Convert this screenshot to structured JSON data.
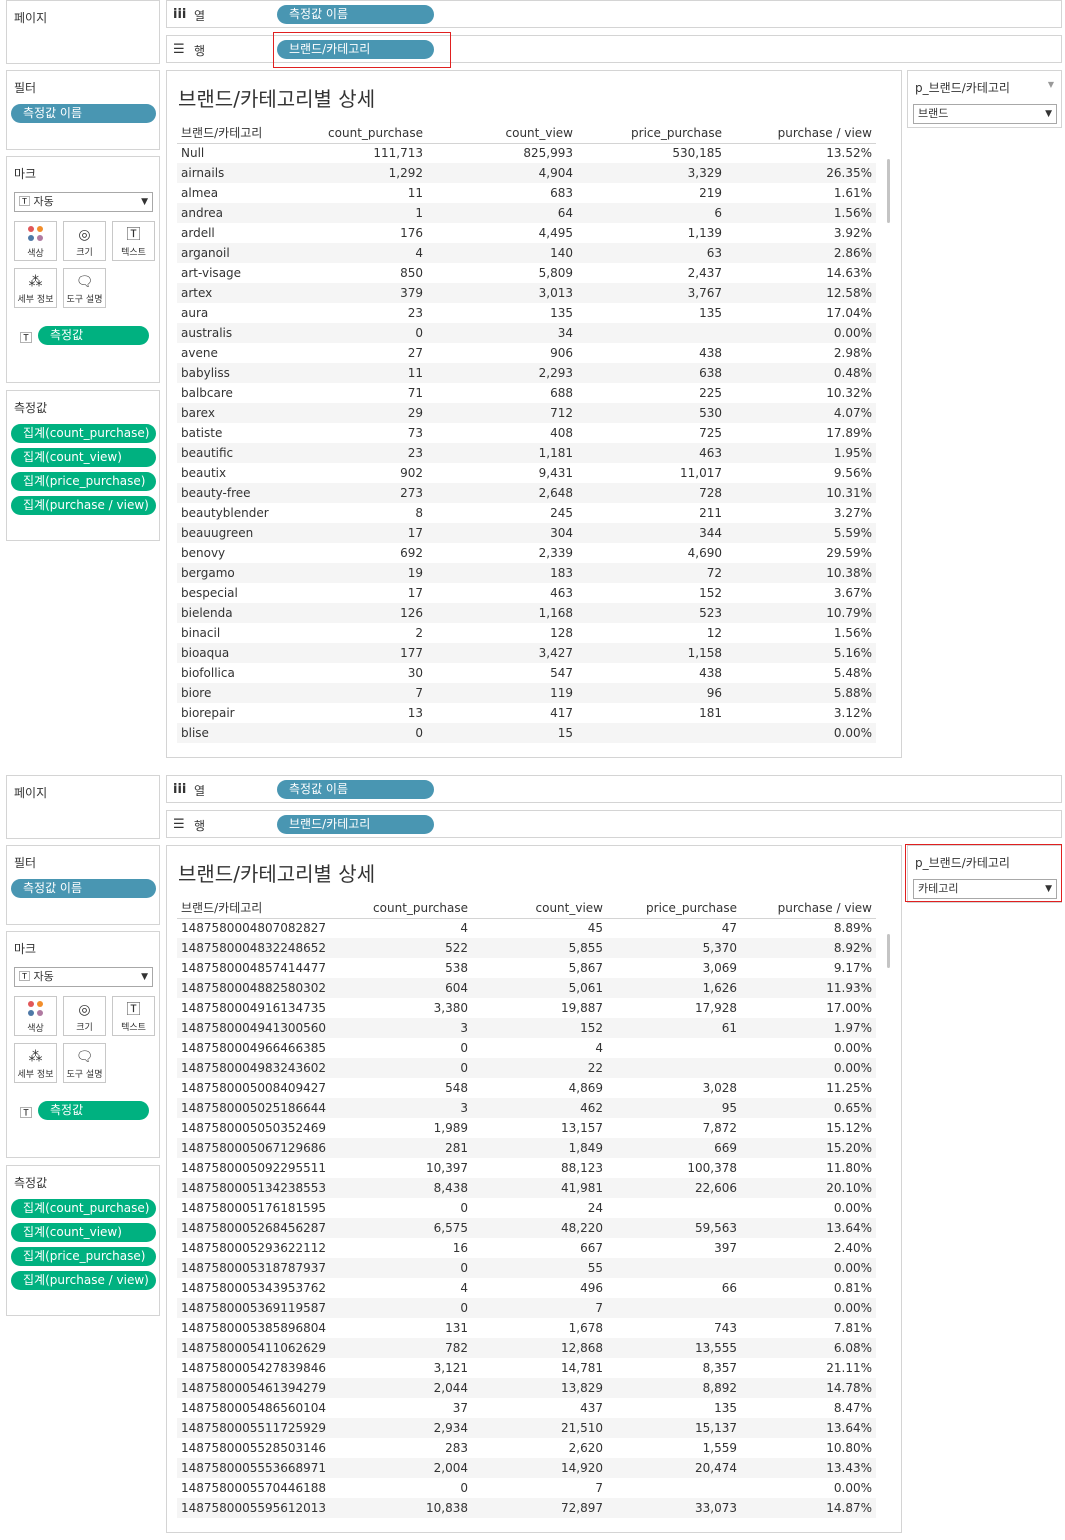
{
  "top": {
    "pages_label": "페이지",
    "columns_shelf": {
      "label": "열",
      "pill": "측정값 이름"
    },
    "rows_shelf": {
      "label": "행",
      "pill": "브랜드/카테고리"
    },
    "filters": {
      "title": "필터",
      "pill": "측정값 이름"
    },
    "marks": {
      "title": "마크",
      "type": "자동",
      "buttons": {
        "color": "색상",
        "size": "크기",
        "text": "텍스트",
        "detail": "세부 정보",
        "tooltip": "도구 설명"
      },
      "text_pill": "측정값"
    },
    "measure_values": {
      "title": "측정값",
      "pills": [
        "집계(count_purchase)",
        "집계(count_view)",
        "집계(price_purchase)",
        "집계(purchase / view)"
      ]
    },
    "parameter": {
      "title": "p_브랜드/카테고리",
      "value": "브랜드"
    },
    "sheet_title": "브랜드/카테고리별 상세",
    "headers": [
      "브랜드/카테고리",
      "count_purchase",
      "count_view",
      "price_purchase",
      "purchase / view"
    ],
    "rows": [
      [
        "Null",
        "111,713",
        "825,993",
        "530,185",
        "13.52%"
      ],
      [
        "airnails",
        "1,292",
        "4,904",
        "3,329",
        "26.35%"
      ],
      [
        "almea",
        "11",
        "683",
        "219",
        "1.61%"
      ],
      [
        "andrea",
        "1",
        "64",
        "6",
        "1.56%"
      ],
      [
        "ardell",
        "176",
        "4,495",
        "1,139",
        "3.92%"
      ],
      [
        "arganoil",
        "4",
        "140",
        "63",
        "2.86%"
      ],
      [
        "art-visage",
        "850",
        "5,809",
        "2,437",
        "14.63%"
      ],
      [
        "artex",
        "379",
        "3,013",
        "3,767",
        "12.58%"
      ],
      [
        "aura",
        "23",
        "135",
        "135",
        "17.04%"
      ],
      [
        "australis",
        "0",
        "34",
        "",
        "0.00%"
      ],
      [
        "avene",
        "27",
        "906",
        "438",
        "2.98%"
      ],
      [
        "babyliss",
        "11",
        "2,293",
        "638",
        "0.48%"
      ],
      [
        "balbcare",
        "71",
        "688",
        "225",
        "10.32%"
      ],
      [
        "barex",
        "29",
        "712",
        "530",
        "4.07%"
      ],
      [
        "batiste",
        "73",
        "408",
        "725",
        "17.89%"
      ],
      [
        "beautific",
        "23",
        "1,181",
        "463",
        "1.95%"
      ],
      [
        "beautix",
        "902",
        "9,431",
        "11,017",
        "9.56%"
      ],
      [
        "beauty-free",
        "273",
        "2,648",
        "728",
        "10.31%"
      ],
      [
        "beautyblender",
        "8",
        "245",
        "211",
        "3.27%"
      ],
      [
        "beauugreen",
        "17",
        "304",
        "344",
        "5.59%"
      ],
      [
        "benovy",
        "692",
        "2,339",
        "4,690",
        "29.59%"
      ],
      [
        "bergamo",
        "19",
        "183",
        "72",
        "10.38%"
      ],
      [
        "bespecial",
        "17",
        "463",
        "152",
        "3.67%"
      ],
      [
        "bielenda",
        "126",
        "1,168",
        "523",
        "10.79%"
      ],
      [
        "binacil",
        "2",
        "128",
        "12",
        "1.56%"
      ],
      [
        "bioaqua",
        "177",
        "3,427",
        "1,158",
        "5.16%"
      ],
      [
        "biofollica",
        "30",
        "547",
        "438",
        "5.48%"
      ],
      [
        "biore",
        "7",
        "119",
        "96",
        "5.88%"
      ],
      [
        "biorepair",
        "13",
        "417",
        "181",
        "3.12%"
      ],
      [
        "blise",
        "0",
        "15",
        "",
        "0.00%"
      ]
    ]
  },
  "bottom": {
    "pages_label": "페이지",
    "columns_shelf": {
      "label": "열",
      "pill": "측정값 이름"
    },
    "rows_shelf": {
      "label": "행",
      "pill": "브랜드/카테고리"
    },
    "filters": {
      "title": "필터",
      "pill": "측정값 이름"
    },
    "marks": {
      "title": "마크",
      "type": "자동",
      "buttons": {
        "color": "색상",
        "size": "크기",
        "text": "텍스트",
        "detail": "세부 정보",
        "tooltip": "도구 설명"
      },
      "text_pill": "측정값"
    },
    "measure_values": {
      "title": "측정값",
      "pills": [
        "집계(count_purchase)",
        "집계(count_view)",
        "집계(price_purchase)",
        "집계(purchase / view)"
      ]
    },
    "parameter": {
      "title": "p_브랜드/카테고리",
      "value": "카테고리"
    },
    "sheet_title": "브랜드/카테고리별 상세",
    "headers": [
      "브랜드/카테고리",
      "count_purchase",
      "count_view",
      "price_purchase",
      "purchase / view"
    ],
    "rows": [
      [
        "1487580004807082827",
        "4",
        "45",
        "47",
        "8.89%"
      ],
      [
        "1487580004832248652",
        "522",
        "5,855",
        "5,370",
        "8.92%"
      ],
      [
        "1487580004857414477",
        "538",
        "5,867",
        "3,069",
        "9.17%"
      ],
      [
        "1487580004882580302",
        "604",
        "5,061",
        "1,626",
        "11.93%"
      ],
      [
        "1487580004916134735",
        "3,380",
        "19,887",
        "17,928",
        "17.00%"
      ],
      [
        "1487580004941300560",
        "3",
        "152",
        "61",
        "1.97%"
      ],
      [
        "1487580004966466385",
        "0",
        "4",
        "",
        "0.00%"
      ],
      [
        "1487580004983243602",
        "0",
        "22",
        "",
        "0.00%"
      ],
      [
        "1487580005008409427",
        "548",
        "4,869",
        "3,028",
        "11.25%"
      ],
      [
        "1487580005025186644",
        "3",
        "462",
        "95",
        "0.65%"
      ],
      [
        "1487580005050352469",
        "1,989",
        "13,157",
        "7,872",
        "15.12%"
      ],
      [
        "1487580005067129686",
        "281",
        "1,849",
        "669",
        "15.20%"
      ],
      [
        "1487580005092295511",
        "10,397",
        "88,123",
        "100,378",
        "11.80%"
      ],
      [
        "1487580005134238553",
        "8,438",
        "41,981",
        "22,606",
        "20.10%"
      ],
      [
        "1487580005176181595",
        "0",
        "24",
        "",
        "0.00%"
      ],
      [
        "1487580005268456287",
        "6,575",
        "48,220",
        "59,563",
        "13.64%"
      ],
      [
        "1487580005293622112",
        "16",
        "667",
        "397",
        "2.40%"
      ],
      [
        "1487580005318787937",
        "0",
        "55",
        "",
        "0.00%"
      ],
      [
        "1487580005343953762",
        "4",
        "496",
        "66",
        "0.81%"
      ],
      [
        "1487580005369119587",
        "0",
        "7",
        "",
        "0.00%"
      ],
      [
        "1487580005385896804",
        "131",
        "1,678",
        "743",
        "7.81%"
      ],
      [
        "1487580005411062629",
        "782",
        "12,868",
        "13,555",
        "6.08%"
      ],
      [
        "1487580005427839846",
        "3,121",
        "14,781",
        "8,357",
        "21.11%"
      ],
      [
        "1487580005461394279",
        "2,044",
        "13,829",
        "8,892",
        "14.78%"
      ],
      [
        "1487580005486560104",
        "37",
        "437",
        "135",
        "8.47%"
      ],
      [
        "1487580005511725929",
        "2,934",
        "21,510",
        "15,137",
        "13.64%"
      ],
      [
        "1487580005528503146",
        "283",
        "2,620",
        "1,559",
        "10.80%"
      ],
      [
        "1487580005553668971",
        "2,004",
        "14,920",
        "20,474",
        "13.43%"
      ],
      [
        "1487580005570446188",
        "0",
        "7",
        "",
        "0.00%"
      ],
      [
        "1487580005595612013",
        "10,838",
        "72,897",
        "33,073",
        "14.87%"
      ]
    ]
  },
  "colors": {
    "dimension_pill": "#4996b2",
    "measure_pill": "#00b180",
    "highlight": "#e02020",
    "row_band": "#f5f5f5"
  }
}
